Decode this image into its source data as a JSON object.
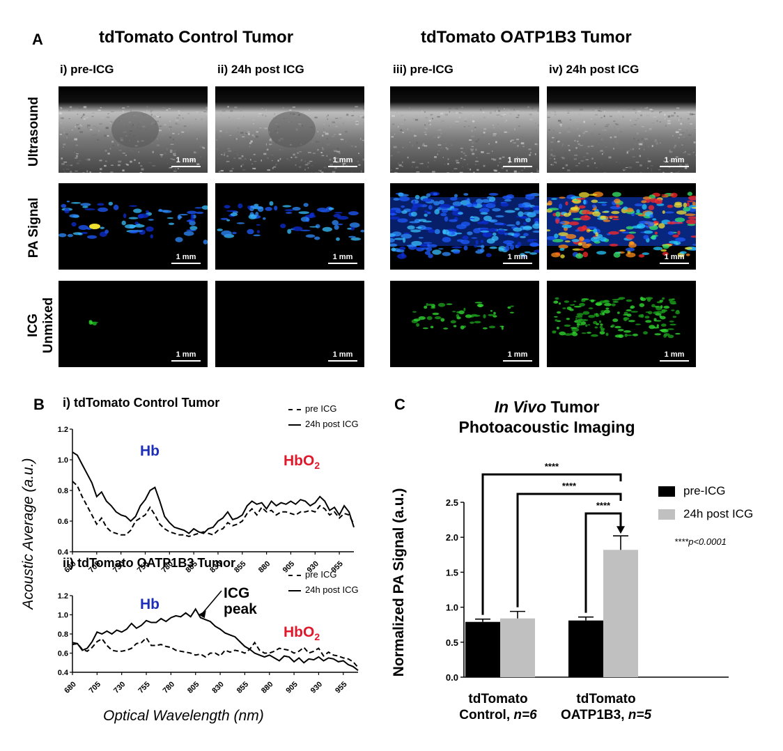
{
  "panelA": {
    "letter": "A",
    "group_left_title": "tdTomato Control Tumor",
    "group_right_title": "tdTomato OATP1B3 Tumor",
    "columns": [
      "i) pre-ICG",
      "ii) 24h post ICG",
      "iii) pre-ICG",
      "iv) 24h post ICG"
    ],
    "rows": [
      "Ultrasound",
      "PA Signal",
      "ICG Unmixed"
    ],
    "row_icg_line1": "ICG",
    "row_icg_line2": "Unmixed",
    "scale_label": "1 mm"
  },
  "panelB": {
    "letter": "B",
    "ylabel": "Acoustic Average (a.u.)",
    "xlabel": "Optical Wavelength (nm)",
    "legend_pre": "pre ICG",
    "legend_post": "24h post ICG",
    "annot_hb": "Hb",
    "annot_hbo2": "HbO",
    "annot_hbo2_sub": "2",
    "annot_icg_line1": "ICG",
    "annot_icg_line2": "peak",
    "colors": {
      "hb": "#1d2fb8",
      "hbo2": "#e0182b"
    }
  },
  "panelC": {
    "letter": "C",
    "title_italic": "In Vivo",
    "title_rest": " Tumor",
    "title_line2": "Photoacoustic Imaging",
    "ylabel": "Normalized PA Signal (a.u.)",
    "legend_pre": "pre-ICG",
    "legend_post": "24h post ICG",
    "sig": "****",
    "pvalue_note": "****p<0.0001",
    "group1_line1": "tdTomato",
    "group1_line2a": "Control, ",
    "group1_line2b": "n=6",
    "group2_line1": "tdTomato",
    "group2_line2a": "OATP1B3, ",
    "group2_line2b": "n=5",
    "colors": {
      "pre": "#000000",
      "post": "#c0c0c0"
    }
  },
  "chart_data": [
    {
      "type": "line",
      "title": "i) tdTomato Control Tumor",
      "xlabel": "Optical Wavelength (nm)",
      "ylabel": "Acoustic Average (a.u.)",
      "xlim": [
        680,
        970
      ],
      "ylim": [
        0.4,
        1.2
      ],
      "xticks": [
        680,
        705,
        730,
        755,
        780,
        805,
        830,
        855,
        880,
        905,
        930,
        955
      ],
      "yticks": [
        0.4,
        0.6,
        0.8,
        1.0,
        1.2
      ],
      "x": [
        680,
        685,
        690,
        695,
        700,
        705,
        710,
        715,
        720,
        725,
        730,
        735,
        740,
        745,
        750,
        755,
        760,
        765,
        770,
        775,
        780,
        785,
        790,
        795,
        800,
        805,
        810,
        815,
        820,
        825,
        830,
        835,
        840,
        845,
        850,
        855,
        860,
        865,
        870,
        875,
        880,
        885,
        890,
        895,
        900,
        905,
        910,
        915,
        920,
        925,
        930,
        935,
        940,
        945,
        950,
        955,
        960,
        965,
        970
      ],
      "series": [
        {
          "name": "pre ICG",
          "style": "dashed",
          "values": [
            0.86,
            0.83,
            0.76,
            0.7,
            0.64,
            0.58,
            0.62,
            0.56,
            0.53,
            0.52,
            0.51,
            0.51,
            0.54,
            0.6,
            0.62,
            0.64,
            0.69,
            0.64,
            0.58,
            0.55,
            0.53,
            0.52,
            0.51,
            0.51,
            0.5,
            0.51,
            0.52,
            0.53,
            0.52,
            0.51,
            0.54,
            0.55,
            0.59,
            0.57,
            0.58,
            0.6,
            0.65,
            0.68,
            0.64,
            0.69,
            0.66,
            0.67,
            0.64,
            0.66,
            0.66,
            0.65,
            0.64,
            0.66,
            0.66,
            0.67,
            0.66,
            0.7,
            0.68,
            0.64,
            0.66,
            0.62,
            0.65,
            0.64,
            0.58
          ]
        },
        {
          "name": "24h post ICG",
          "style": "solid",
          "values": [
            1.05,
            1.03,
            0.97,
            0.91,
            0.85,
            0.76,
            0.79,
            0.73,
            0.7,
            0.66,
            0.64,
            0.63,
            0.6,
            0.63,
            0.7,
            0.74,
            0.8,
            0.82,
            0.73,
            0.63,
            0.59,
            0.56,
            0.55,
            0.54,
            0.52,
            0.55,
            0.53,
            0.52,
            0.55,
            0.56,
            0.6,
            0.62,
            0.66,
            0.61,
            0.62,
            0.64,
            0.7,
            0.73,
            0.71,
            0.72,
            0.68,
            0.73,
            0.7,
            0.72,
            0.71,
            0.73,
            0.71,
            0.74,
            0.73,
            0.7,
            0.72,
            0.76,
            0.73,
            0.67,
            0.69,
            0.64,
            0.7,
            0.66,
            0.56
          ]
        }
      ]
    },
    {
      "type": "line",
      "title": "ii) tdTomato OATP1B3 Tumor",
      "xlabel": "Optical Wavelength (nm)",
      "ylabel": "Acoustic Average (a.u.)",
      "xlim": [
        680,
        970
      ],
      "ylim": [
        0.4,
        1.2
      ],
      "xticks": [
        680,
        705,
        730,
        755,
        780,
        805,
        830,
        855,
        880,
        905,
        930,
        955
      ],
      "yticks": [
        0.4,
        0.6,
        0.8,
        1.0,
        1.2
      ],
      "x": [
        680,
        685,
        690,
        695,
        700,
        705,
        710,
        715,
        720,
        725,
        730,
        735,
        740,
        745,
        750,
        755,
        760,
        765,
        770,
        775,
        780,
        785,
        790,
        795,
        800,
        805,
        810,
        815,
        820,
        825,
        830,
        835,
        840,
        845,
        850,
        855,
        860,
        865,
        870,
        875,
        880,
        885,
        890,
        895,
        900,
        905,
        910,
        915,
        920,
        925,
        930,
        935,
        940,
        945,
        950,
        955,
        960,
        965,
        970
      ],
      "series": [
        {
          "name": "pre ICG",
          "style": "dashed",
          "values": [
            0.69,
            0.7,
            0.64,
            0.62,
            0.66,
            0.72,
            0.75,
            0.68,
            0.63,
            0.62,
            0.62,
            0.63,
            0.65,
            0.7,
            0.71,
            0.76,
            0.68,
            0.68,
            0.69,
            0.67,
            0.66,
            0.63,
            0.62,
            0.61,
            0.6,
            0.58,
            0.59,
            0.56,
            0.6,
            0.6,
            0.57,
            0.63,
            0.61,
            0.63,
            0.62,
            0.6,
            0.64,
            0.71,
            0.63,
            0.6,
            0.6,
            0.62,
            0.65,
            0.64,
            0.63,
            0.6,
            0.62,
            0.66,
            0.6,
            0.62,
            0.65,
            0.57,
            0.61,
            0.58,
            0.57,
            0.55,
            0.54,
            0.51,
            0.45
          ]
        },
        {
          "name": "24h post ICG",
          "style": "solid",
          "values": [
            0.71,
            0.7,
            0.63,
            0.65,
            0.72,
            0.82,
            0.8,
            0.83,
            0.8,
            0.84,
            0.82,
            0.85,
            0.91,
            0.86,
            0.89,
            0.94,
            0.92,
            0.92,
            0.96,
            0.93,
            0.97,
            0.99,
            0.98,
            1.02,
            0.98,
            1.06,
            0.97,
            0.95,
            0.93,
            0.88,
            0.85,
            0.81,
            0.79,
            0.77,
            0.72,
            0.67,
            0.64,
            0.6,
            0.58,
            0.56,
            0.58,
            0.55,
            0.52,
            0.57,
            0.56,
            0.51,
            0.55,
            0.5,
            0.54,
            0.53,
            0.56,
            0.52,
            0.55,
            0.54,
            0.51,
            0.52,
            0.48,
            0.46,
            0.42
          ]
        }
      ]
    },
    {
      "type": "bar",
      "title": "In Vivo Tumor Photoacoustic Imaging",
      "ylabel": "Normalized PA Signal (a.u.)",
      "categories": [
        "tdTomato Control, n=6",
        "tdTomato OATP1B3, n=5"
      ],
      "ylim": [
        0.0,
        2.5
      ],
      "yticks": [
        0.0,
        0.5,
        1.0,
        1.5,
        2.0,
        2.5
      ],
      "series": [
        {
          "name": "pre-ICG",
          "values": [
            0.79,
            0.81
          ],
          "error": [
            0.04,
            0.05
          ]
        },
        {
          "name": "24h post ICG",
          "values": [
            0.84,
            1.82
          ],
          "error": [
            0.1,
            0.2
          ]
        }
      ],
      "annotations": [
        "****",
        "****",
        "****",
        "****p<0.0001"
      ]
    }
  ]
}
